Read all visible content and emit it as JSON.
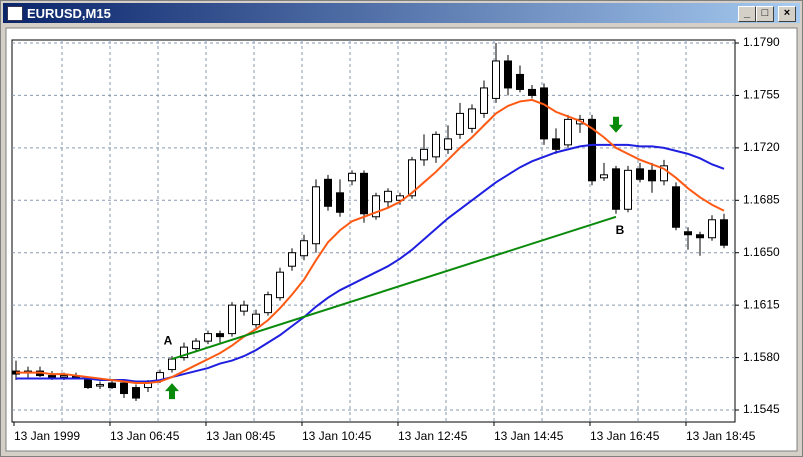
{
  "window": {
    "title": "EURUSD,M15"
  },
  "chart_data": {
    "type": "candlestick",
    "categories": [
      "13 Jan 1999",
      null,
      null,
      null,
      null,
      null,
      null,
      null,
      "13 Jan 06:45",
      null,
      null,
      null,
      null,
      null,
      null,
      null,
      "13 Jan 08:45",
      null,
      null,
      null,
      null,
      null,
      null,
      null,
      "13 Jan 10:45",
      null,
      null,
      null,
      null,
      null,
      null,
      null,
      "13 Jan 12:45",
      null,
      null,
      null,
      null,
      null,
      null,
      null,
      "13 Jan 14:45",
      null,
      null,
      null,
      null,
      null,
      null,
      null,
      "13 Jan 16:45",
      null,
      null,
      null,
      null,
      null,
      null,
      null,
      "13 Jan 18:45",
      null,
      null,
      null
    ],
    "open": [
      1.1571,
      1.157,
      1.1571,
      1.1568,
      1.1567,
      1.1568,
      1.1566,
      1.1561,
      1.1563,
      1.1563,
      1.156,
      1.156,
      1.1565,
      1.1572,
      1.158,
      1.1586,
      1.1591,
      1.1596,
      1.1596,
      1.1611,
      1.1602,
      1.161,
      1.162,
      1.1641,
      1.1648,
      1.1656,
      1.1699,
      1.169,
      1.1698,
      1.1703,
      1.1674,
      1.1684,
      1.1685,
      1.1688,
      1.1712,
      1.1714,
      1.1719,
      1.1729,
      1.1733,
      1.1743,
      1.1753,
      1.1778,
      1.1769,
      1.1759,
      1.176,
      1.1726,
      1.1722,
      1.1736,
      1.1739,
      1.17,
      1.1706,
      1.1679,
      1.1706,
      1.1705,
      1.1698,
      1.1694,
      1.1664,
      1.1662,
      1.166,
      1.1672
    ],
    "high": [
      1.1578,
      1.1574,
      1.1574,
      1.1571,
      1.157,
      1.157,
      1.1567,
      1.1564,
      1.1565,
      1.1565,
      1.1562,
      1.1565,
      1.1572,
      1.1581,
      1.159,
      1.1593,
      1.1598,
      1.1598,
      1.1617,
      1.1618,
      1.1612,
      1.1624,
      1.164,
      1.1653,
      1.1662,
      1.1699,
      1.1702,
      1.1699,
      1.1705,
      1.1705,
      1.169,
      1.1693,
      1.169,
      1.1714,
      1.1729,
      1.1731,
      1.1735,
      1.175,
      1.1749,
      1.1765,
      1.179,
      1.1782,
      1.1775,
      1.1762,
      1.1763,
      1.1733,
      1.1742,
      1.1742,
      1.1742,
      1.171,
      1.1708,
      1.1708,
      1.171,
      1.171,
      1.1712,
      1.1697,
      1.1667,
      1.1664,
      1.1675,
      1.1676
    ],
    "low": [
      1.1565,
      1.1566,
      1.1567,
      1.1565,
      1.1565,
      1.1566,
      1.1559,
      1.1559,
      1.1559,
      1.1553,
      1.1551,
      1.1557,
      1.1563,
      1.157,
      1.1578,
      1.1584,
      1.1589,
      1.159,
      1.1594,
      1.1608,
      1.16,
      1.1608,
      1.1618,
      1.1638,
      1.1645,
      1.165,
      1.1678,
      1.1674,
      1.1695,
      1.167,
      1.1672,
      1.168,
      1.1682,
      1.1686,
      1.1708,
      1.171,
      1.1716,
      1.1726,
      1.173,
      1.174,
      1.175,
      1.1755,
      1.1757,
      1.1753,
      1.1722,
      1.1716,
      1.172,
      1.173,
      1.1695,
      1.1698,
      1.1676,
      1.1677,
      1.1697,
      1.169,
      1.1695,
      1.1665,
      1.1652,
      1.1648,
      1.1658,
      1.1653
    ],
    "close": [
      1.1569,
      1.1571,
      1.1568,
      1.1567,
      1.1568,
      1.1567,
      1.156,
      1.1562,
      1.156,
      1.1556,
      1.1553,
      1.1563,
      1.157,
      1.1579,
      1.1587,
      1.1591,
      1.1596,
      1.1594,
      1.1615,
      1.1615,
      1.1609,
      1.1622,
      1.1637,
      1.165,
      1.1658,
      1.1694,
      1.1681,
      1.1677,
      1.1703,
      1.1676,
      1.1688,
      1.1691,
      1.1688,
      1.1712,
      1.1719,
      1.1729,
      1.1726,
      1.1743,
      1.1746,
      1.176,
      1.1778,
      1.176,
      1.1759,
      1.1755,
      1.1726,
      1.1719,
      1.1739,
      1.1739,
      1.1698,
      1.1702,
      1.1679,
      1.1705,
      1.1699,
      1.1698,
      1.1708,
      1.1667,
      1.1662,
      1.166,
      1.1672,
      1.1655
    ],
    "lines": [
      {
        "color": "#1f1fe0",
        "values": [
          1.1566,
          1.1566,
          1.1566,
          1.1566,
          1.1566,
          1.1566,
          1.1566,
          1.1565,
          1.1565,
          1.1565,
          1.1564,
          1.1564,
          1.1565,
          1.1567,
          1.1569,
          1.1571,
          1.1573,
          1.1576,
          1.1578,
          1.1581,
          1.1585,
          1.159,
          1.1595,
          1.1601,
          1.1607,
          1.1614,
          1.162,
          1.1625,
          1.1629,
          1.1633,
          1.1637,
          1.1641,
          1.1646,
          1.1652,
          1.1659,
          1.1666,
          1.1673,
          1.1679,
          1.1685,
          1.1691,
          1.1697,
          1.1702,
          1.1707,
          1.1711,
          1.1714,
          1.1717,
          1.1719,
          1.1721,
          1.1722,
          1.1722,
          1.1722,
          1.1722,
          1.1721,
          1.1721,
          1.172,
          1.1718,
          1.1716,
          1.1713,
          1.1709,
          1.1706
        ]
      },
      {
        "color": "#ff5a14",
        "values": [
          1.157,
          1.157,
          1.157,
          1.1569,
          1.1569,
          1.1568,
          1.1567,
          1.1566,
          1.1565,
          1.1564,
          1.1563,
          1.1563,
          1.1564,
          1.1567,
          1.1571,
          1.1575,
          1.1579,
          1.1583,
          1.1588,
          1.1594,
          1.1599,
          1.1605,
          1.1613,
          1.1622,
          1.1632,
          1.1645,
          1.1657,
          1.1665,
          1.1671,
          1.1674,
          1.1677,
          1.168,
          1.1684,
          1.169,
          1.1697,
          1.1704,
          1.1712,
          1.172,
          1.1727,
          1.1735,
          1.1743,
          1.1748,
          1.1751,
          1.1752,
          1.1749,
          1.1744,
          1.1741,
          1.1738,
          1.1733,
          1.1727,
          1.172,
          1.1716,
          1.1712,
          1.1709,
          1.1706,
          1.17,
          1.1693,
          1.1687,
          1.1682,
          1.1678
        ]
      }
    ],
    "trendline": {
      "color": "#0a8a0a",
      "x": [
        13,
        50
      ],
      "y": [
        1.1579,
        1.1674
      ]
    },
    "annotations": [
      {
        "text": "A",
        "x": 13,
        "y": 1.1579,
        "arrow": "up"
      },
      {
        "text": "B",
        "x": 50,
        "y": 1.1674,
        "arrow": "down"
      }
    ],
    "ylim": [
      1.1537,
      1.1792
    ],
    "yticks": [
      1.1545,
      {
        "value": 1.158,
        "label": "1.1580"
      },
      1.1615,
      {
        "value": 1.165,
        "label": "1.1650"
      },
      1.1685,
      {
        "value": 1.172,
        "label": "1.1720"
      },
      1.1755,
      {
        "value": 1.179,
        "label": "1.1790"
      }
    ],
    "grid": true,
    "xgrid_every": 4
  }
}
